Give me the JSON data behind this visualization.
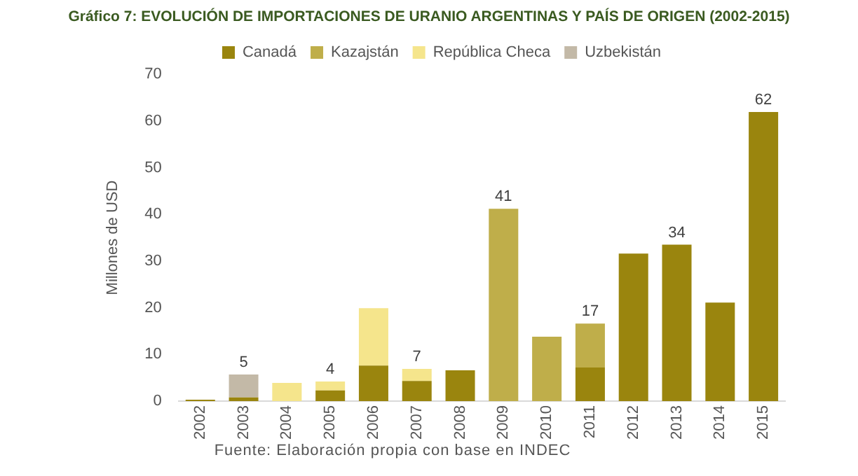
{
  "chart_data": {
    "type": "bar",
    "stacked": true,
    "title": "Gráfico 7: EVOLUCIÓN DE IMPORTACIONES DE URANIO ARGENTINAS Y PAÍS DE ORIGEN (2002-2015)",
    "ylabel": "Millones de USD",
    "categories": [
      "2002",
      "2003",
      "2004",
      "2005",
      "2006",
      "2007",
      "2008",
      "2009",
      "2010",
      "2011",
      "2012",
      "2013",
      "2014",
      "2015"
    ],
    "series": [
      {
        "name": "Canadá",
        "color": "#9a850e",
        "values": [
          0.3,
          0.8,
          null,
          2.3,
          7.6,
          4.3,
          6.6,
          null,
          null,
          7.2,
          31.6,
          33.5,
          21.1,
          61.9
        ]
      },
      {
        "name": "Kazajstán",
        "color": "#bfae4a",
        "values": [
          null,
          null,
          null,
          null,
          null,
          null,
          null,
          41.2,
          13.8,
          9.4,
          null,
          null,
          null,
          null
        ]
      },
      {
        "name": "República Checa",
        "color": "#f5e58c",
        "values": [
          null,
          null,
          3.9,
          1.9,
          12.3,
          2.6,
          null,
          null,
          null,
          null,
          null,
          null,
          null,
          null
        ]
      },
      {
        "name": "Uzbekistán",
        "color": "#c3b9a7",
        "values": [
          null,
          4.9,
          null,
          null,
          null,
          null,
          null,
          null,
          null,
          null,
          null,
          null,
          null,
          null
        ]
      }
    ],
    "totals": [
      null,
      "5",
      null,
      "4",
      null,
      "7",
      null,
      "41",
      null,
      "17",
      null,
      "34",
      null,
      "62"
    ],
    "ylim": [
      0,
      70
    ],
    "yticks": [
      0,
      10,
      20,
      30,
      40,
      50,
      60,
      70
    ],
    "grid": false,
    "legend": "top",
    "annotations": [
      "Fuente: Elaboración propia con base en INDEC"
    ]
  }
}
